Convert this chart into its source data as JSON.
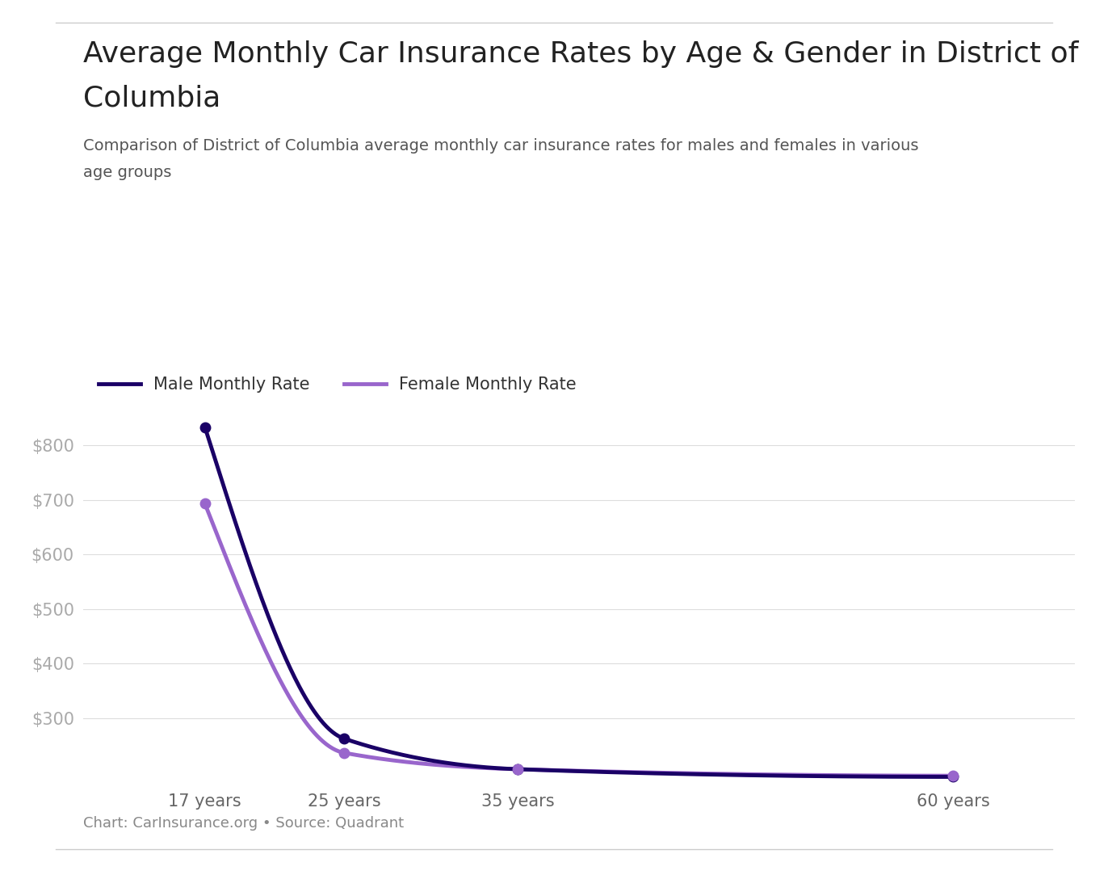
{
  "title_line1": "Average Monthly Car Insurance Rates by Age & Gender in District of",
  "title_line2": "Columbia",
  "subtitle_line1": "Comparison of District of Columbia average monthly car insurance rates for males and females in various",
  "subtitle_line2": "age groups",
  "footnote": "Chart: CarInsurance.org • Source: Quadrant",
  "ages": [
    17,
    25,
    35,
    60
  ],
  "age_labels": [
    "17 years",
    "25 years",
    "35 years",
    "60 years"
  ],
  "male_rates": [
    833,
    263,
    207,
    193
  ],
  "female_rates": [
    693,
    237,
    207,
    195
  ],
  "male_color": "#1a0066",
  "female_color": "#9966cc",
  "male_label": "Male Monthly Rate",
  "female_label": "Female Monthly Rate",
  "yticks": [
    300,
    400,
    500,
    600,
    700,
    800
  ],
  "ytick_labels": [
    "$300",
    "$400",
    "$500",
    "$600",
    "$700",
    "$800"
  ],
  "background_color": "#ffffff",
  "grid_color": "#dddddd",
  "title_fontsize": 26,
  "subtitle_fontsize": 14,
  "footnote_fontsize": 13,
  "tick_fontsize": 15,
  "legend_fontsize": 15,
  "line_width": 3.5,
  "marker_size": 9
}
